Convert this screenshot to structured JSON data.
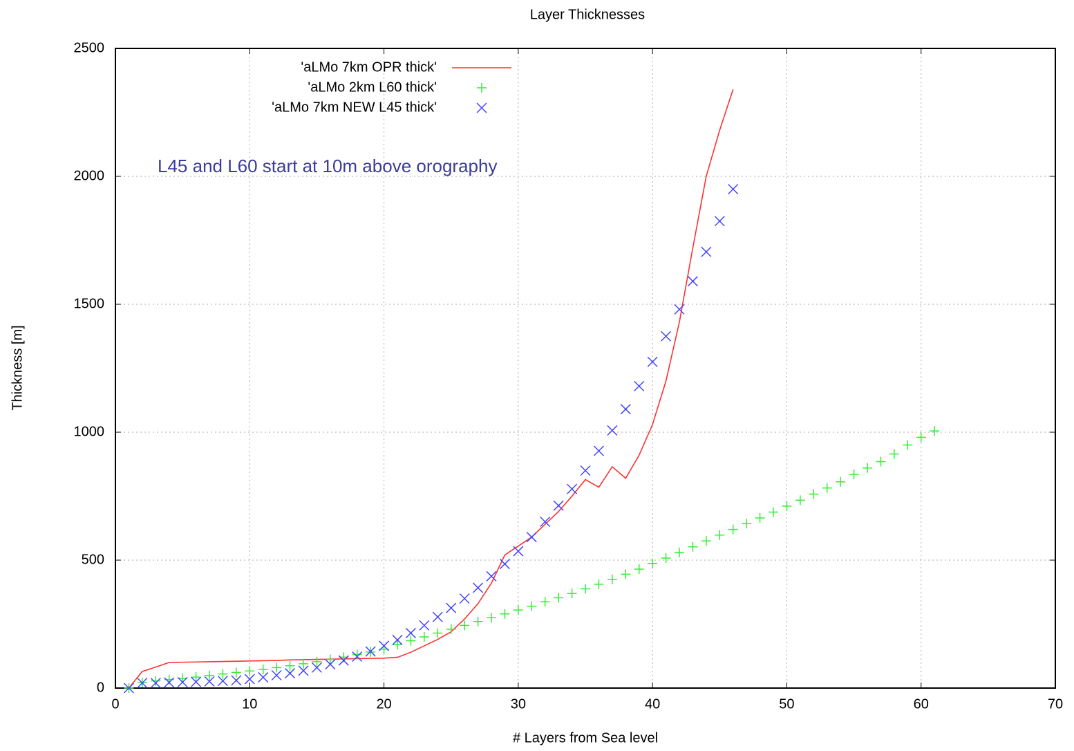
{
  "chart_data": {
    "type": "line",
    "title": "Layer Thicknesses",
    "xlabel": "# Layers from Sea level",
    "ylabel": "Thickness [m]",
    "annotation": "L45 and L60 start at 10m above orography",
    "annotation_color": "#3c3c9c",
    "xlim": [
      0,
      70
    ],
    "xticks": [
      0,
      10,
      20,
      30,
      40,
      50,
      60,
      70
    ],
    "ylim": [
      0,
      2500
    ],
    "yticks": [
      0,
      500,
      1000,
      1500,
      2000,
      2500
    ],
    "grid": true,
    "legend": "top-left",
    "series": [
      {
        "name": "'aLMo 7km OPR thick'",
        "color": "#ff3030",
        "style": "line",
        "x": [
          1,
          2,
          3,
          4,
          5,
          6,
          7,
          8,
          9,
          10,
          11,
          12,
          13,
          14,
          15,
          16,
          17,
          18,
          19,
          20,
          21,
          22,
          23,
          24,
          25,
          26,
          27,
          28,
          29,
          30,
          31,
          32,
          33,
          34,
          35,
          36,
          37,
          38,
          39,
          40,
          41,
          42,
          43,
          44,
          45,
          46
        ],
        "values": [
          0,
          65,
          82,
          100,
          101,
          102,
          103,
          104,
          105,
          106,
          107,
          108,
          110,
          111,
          112,
          113,
          114,
          115,
          116,
          117,
          120,
          140,
          165,
          190,
          220,
          270,
          330,
          410,
          520,
          555,
          590,
          640,
          690,
          750,
          815,
          785,
          865,
          820,
          910,
          1030,
          1200,
          1430,
          1720,
          2000,
          2180,
          2340
        ]
      },
      {
        "name": "'aLMo 2km L60 thick'",
        "color": "#33ee33",
        "style": "plus",
        "x": [
          1,
          2,
          3,
          4,
          5,
          6,
          7,
          8,
          9,
          10,
          11,
          12,
          13,
          14,
          15,
          16,
          17,
          18,
          19,
          20,
          21,
          22,
          23,
          24,
          25,
          26,
          27,
          28,
          29,
          30,
          31,
          32,
          33,
          34,
          35,
          36,
          37,
          38,
          39,
          40,
          41,
          42,
          43,
          44,
          45,
          46,
          47,
          48,
          49,
          50,
          51,
          52,
          53,
          54,
          55,
          56,
          57,
          58,
          59,
          60,
          61
        ],
        "values": [
          0,
          22,
          28,
          33,
          38,
          43,
          49,
          55,
          61,
          67,
          73,
          80,
          87,
          95,
          103,
          112,
          121,
          131,
          141,
          152,
          170,
          185,
          200,
          215,
          230,
          245,
          260,
          275,
          290,
          305,
          320,
          337,
          353,
          370,
          388,
          406,
          425,
          445,
          465,
          487,
          508,
          530,
          552,
          575,
          598,
          620,
          643,
          665,
          688,
          711,
          734,
          758,
          782,
          806,
          835,
          860,
          885,
          915,
          950,
          980,
          1005
        ]
      },
      {
        "name": "'aLMo 7km NEW L45 thick'",
        "color": "#4444ff",
        "style": "cross",
        "x": [
          1,
          2,
          3,
          4,
          5,
          6,
          7,
          8,
          9,
          10,
          11,
          12,
          13,
          14,
          15,
          16,
          17,
          18,
          19,
          20,
          21,
          22,
          23,
          24,
          25,
          26,
          27,
          28,
          29,
          30,
          31,
          32,
          33,
          34,
          35,
          36,
          37,
          38,
          39,
          40,
          41,
          42,
          43,
          44,
          45,
          46
        ],
        "values": [
          0,
          20,
          20,
          22,
          23,
          24,
          26,
          28,
          30,
          35,
          42,
          50,
          58,
          68,
          80,
          93,
          108,
          123,
          143,
          165,
          188,
          215,
          245,
          278,
          313,
          350,
          392,
          437,
          485,
          535,
          590,
          650,
          713,
          778,
          850,
          927,
          1007,
          1090,
          1180,
          1275,
          1375,
          1480,
          1590,
          1705,
          1825,
          1950
        ]
      }
    ]
  }
}
